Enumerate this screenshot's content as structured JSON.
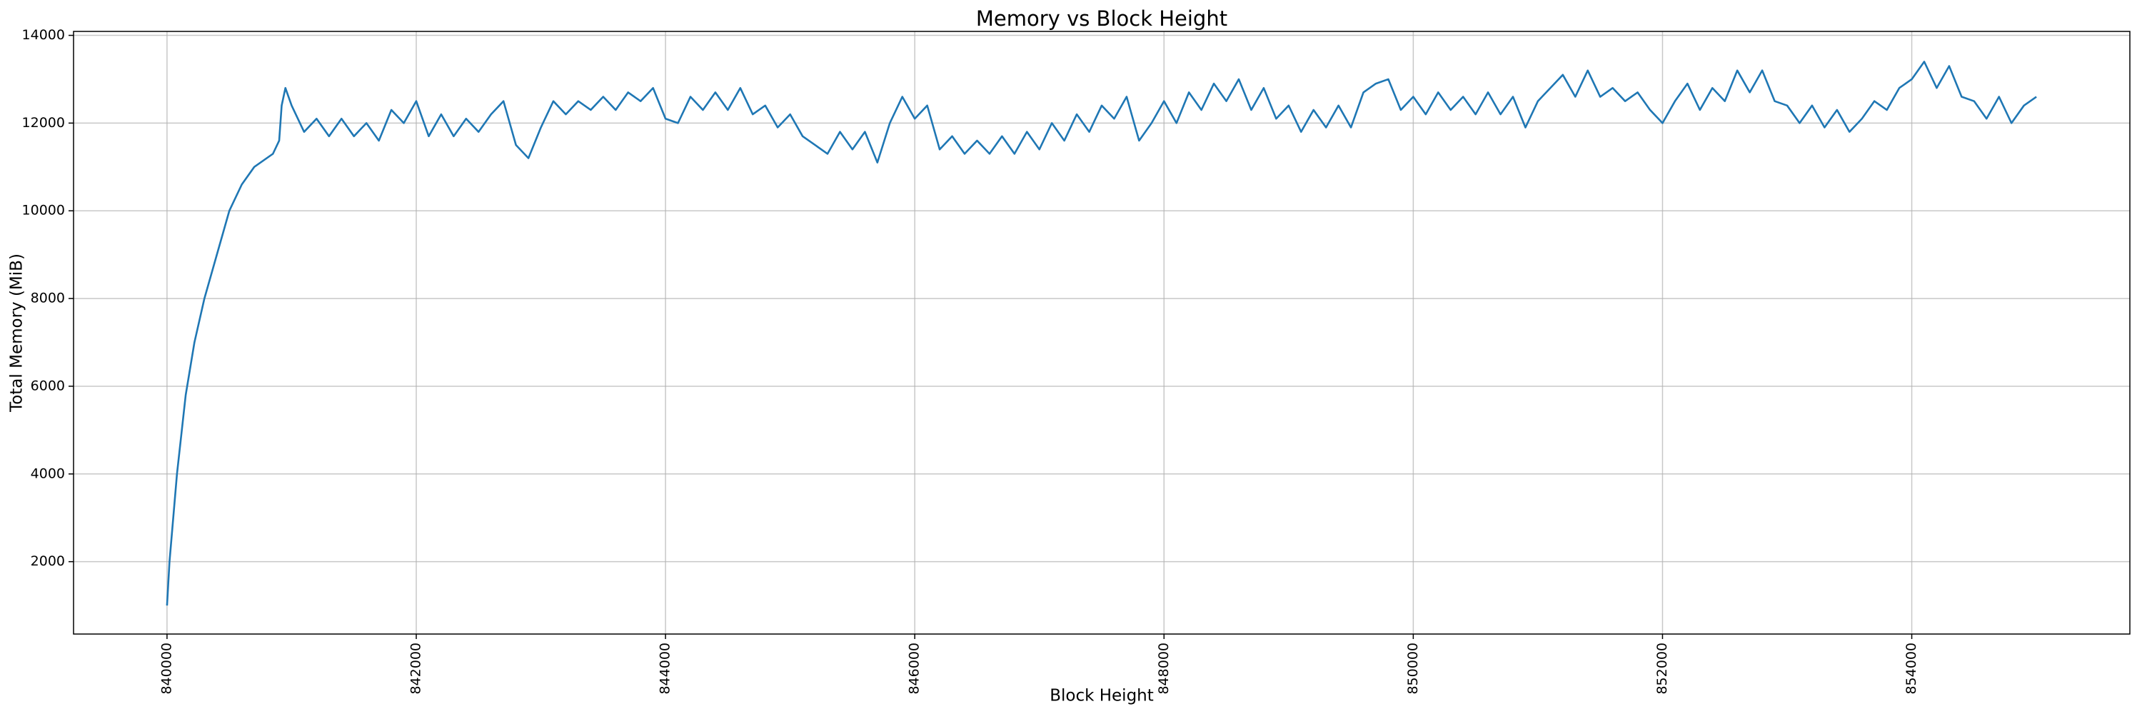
{
  "chart_data": {
    "type": "line",
    "title": "Memory vs Block Height",
    "xlabel": "Block Height",
    "ylabel": "Total Memory (MiB)",
    "x": [
      840000,
      840020,
      840080,
      840150,
      840220,
      840300,
      840400,
      840500,
      840600,
      840700,
      840850,
      840900,
      840920,
      840950,
      841000,
      841100,
      841200,
      841300,
      841400,
      841500,
      841600,
      841700,
      841800,
      841900,
      842000,
      842100,
      842200,
      842300,
      842400,
      842500,
      842600,
      842700,
      842800,
      842900,
      843000,
      843100,
      843200,
      843300,
      843400,
      843500,
      843600,
      843700,
      843800,
      843900,
      844000,
      844100,
      844200,
      844300,
      844400,
      844500,
      844600,
      844700,
      844800,
      844900,
      845000,
      845100,
      845200,
      845300,
      845400,
      845500,
      845600,
      845700,
      845800,
      845900,
      846000,
      846100,
      846200,
      846300,
      846400,
      846500,
      846600,
      846700,
      846800,
      846900,
      847000,
      847100,
      847200,
      847300,
      847400,
      847500,
      847600,
      847700,
      847800,
      847900,
      848000,
      848100,
      848200,
      848300,
      848400,
      848500,
      848600,
      848700,
      848800,
      848900,
      849000,
      849100,
      849200,
      849300,
      849400,
      849500,
      849600,
      849700,
      849800,
      849900,
      850000,
      850100,
      850200,
      850300,
      850400,
      850500,
      850600,
      850700,
      850800,
      850900,
      851000,
      851100,
      851200,
      851300,
      851400,
      851500,
      851600,
      851700,
      851800,
      851900,
      852000,
      852100,
      852200,
      852300,
      852400,
      852500,
      852600,
      852700,
      852800,
      852900,
      853000,
      853100,
      853200,
      853300,
      853400,
      853500,
      853600,
      853700,
      853800,
      853900,
      854000,
      854100,
      854200,
      854300,
      854400,
      854500,
      854600,
      854700,
      854800,
      854900,
      855000
    ],
    "values": [
      1000,
      2000,
      4000,
      5800,
      7000,
      8000,
      9000,
      10000,
      10600,
      11000,
      11300,
      11600,
      12400,
      12800,
      12400,
      11800,
      12100,
      11700,
      12100,
      11700,
      12000,
      11600,
      12300,
      12000,
      12500,
      11700,
      12200,
      11700,
      12100,
      11800,
      12200,
      12500,
      11500,
      11200,
      11900,
      12500,
      12200,
      12500,
      12300,
      12600,
      12300,
      12700,
      12500,
      12800,
      12100,
      12000,
      12600,
      12300,
      12700,
      12300,
      12800,
      12200,
      12400,
      11900,
      12200,
      11700,
      11500,
      11300,
      11800,
      11400,
      11800,
      11100,
      12000,
      12600,
      12100,
      12400,
      11400,
      11700,
      11300,
      11600,
      11300,
      11700,
      11300,
      11800,
      11400,
      12000,
      11600,
      12200,
      11800,
      12400,
      12100,
      12600,
      11600,
      12000,
      12500,
      12000,
      12700,
      12300,
      12900,
      12500,
      13000,
      12300,
      12800,
      12100,
      12400,
      11800,
      12300,
      11900,
      12400,
      11900,
      12700,
      12900,
      13000,
      12300,
      12600,
      12200,
      12700,
      12300,
      12600,
      12200,
      12700,
      12200,
      12600,
      11900,
      12500,
      12800,
      13100,
      12600,
      13200,
      12600,
      12800,
      12500,
      12700,
      12300,
      12000,
      12500,
      12900,
      12300,
      12800,
      12500,
      13200,
      12700,
      13200,
      12500,
      12400,
      12000,
      12400,
      11900,
      12300,
      11800,
      12100,
      12500,
      12300,
      12800,
      13000,
      13400,
      12800,
      13300,
      12600,
      12500,
      12100,
      12600,
      12000,
      12400,
      12600
    ],
    "color": "#1f77b4",
    "xlim": [
      839250,
      855750
    ],
    "ylim": [
      350,
      14090
    ],
    "xticks": [
      840000,
      842000,
      844000,
      846000,
      848000,
      850000,
      852000,
      854000
    ],
    "yticks": [
      2000,
      4000,
      6000,
      8000,
      10000,
      12000,
      14000
    ],
    "grid": true
  }
}
